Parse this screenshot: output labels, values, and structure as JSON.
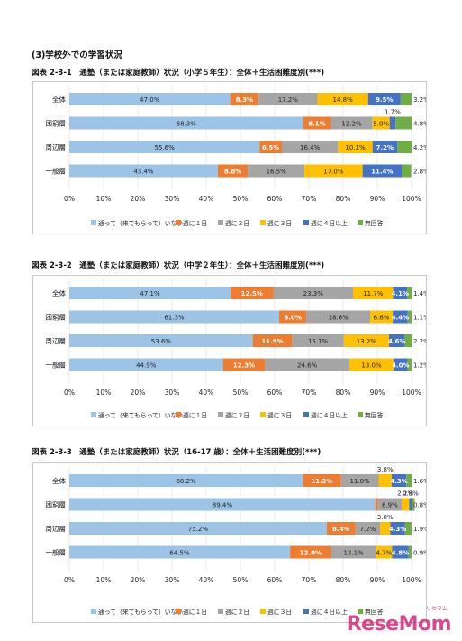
{
  "section_title": "(3)学校外での学習状況",
  "legend": [
    "通って（来てもらって）いない",
    "週に１日",
    "週に２日",
    "週に３日",
    "週に４日以上",
    "無回答"
  ],
  "colors": [
    "#9dc3e6",
    "#ed7d31",
    "#a5a5a5",
    "#ffc000",
    "#4472c4",
    "#70ad47"
  ],
  "x_ticks": [
    "0%",
    "10%",
    "20%",
    "30%",
    "40%",
    "50%",
    "60%",
    "70%",
    "80%",
    "90%",
    "100%"
  ],
  "watermark": "ReseMom",
  "watermark_sub": "リセマム",
  "chart_data": [
    {
      "type": "bar",
      "title": "図表 2-3-1　通塾（または家庭教師）状況（小学５年生）：全体＋生活困難度別(***)",
      "categories": [
        "全体",
        "困窮層",
        "周辺層",
        "一般層"
      ],
      "series": [
        {
          "name": "通って（来てもらって）いない",
          "values": [
            47.0,
            68.3,
            55.6,
            43.4
          ],
          "labels": [
            "47.0%",
            "68.3%",
            "55.6%",
            "43.4%"
          ]
        },
        {
          "name": "週に１日",
          "values": [
            8.3,
            8.1,
            6.5,
            8.8
          ],
          "labels": [
            "8.3%",
            "8.1%",
            "6.5%",
            "8.8%"
          ]
        },
        {
          "name": "週に２日",
          "values": [
            17.2,
            12.2,
            16.4,
            16.5
          ],
          "labels": [
            "17.2%",
            "12.2%",
            "16.4%",
            "16.5%"
          ]
        },
        {
          "name": "週に３日",
          "values": [
            14.8,
            5.0,
            10.1,
            17.0
          ],
          "labels": [
            "14.8%",
            "5.0%",
            "10.1%",
            "17.0%"
          ]
        },
        {
          "name": "週に４日以上",
          "values": [
            9.5,
            1.7,
            7.2,
            11.4
          ],
          "labels": [
            "9.5%",
            "1.7%",
            "7.2%",
            "11.4%"
          ]
        },
        {
          "name": "無回答",
          "values": [
            3.2,
            4.8,
            4.2,
            2.8
          ],
          "labels": [
            "3.2%",
            "4.8%",
            "4.2%",
            "2.8%"
          ]
        }
      ],
      "xlim": [
        0,
        100
      ]
    },
    {
      "type": "bar",
      "title": "図表 2-3-2　通塾（または家庭教師）状況（中学２年生）：全体＋生活困難度別(***)",
      "categories": [
        "全体",
        "困窮層",
        "周辺層",
        "一般層"
      ],
      "series": [
        {
          "name": "通って（来てもらって）いない",
          "values": [
            47.1,
            61.3,
            53.6,
            44.9
          ],
          "labels": [
            "47.1%",
            "61.3%",
            "53.6%",
            "44.9%"
          ]
        },
        {
          "name": "週に１日",
          "values": [
            12.5,
            8.0,
            11.5,
            12.3
          ],
          "labels": [
            "12.5%",
            "8.0%",
            "11.5%",
            "12.3%"
          ]
        },
        {
          "name": "週に２日",
          "values": [
            23.3,
            18.6,
            15.1,
            24.6
          ],
          "labels": [
            "23.3%",
            "18.6%",
            "15.1%",
            "24.6%"
          ]
        },
        {
          "name": "週に３日",
          "values": [
            11.7,
            6.6,
            13.2,
            13.0
          ],
          "labels": [
            "11.7%",
            "6.6%",
            "13.2%",
            "13.0%"
          ]
        },
        {
          "name": "週に４日以上",
          "values": [
            4.1,
            4.4,
            4.6,
            4.0
          ],
          "labels": [
            "4.1%",
            "4.4%",
            "4.6%",
            "4.0%"
          ]
        },
        {
          "name": "無回答",
          "values": [
            1.4,
            1.1,
            2.2,
            1.2
          ],
          "labels": [
            "1.4%",
            "1.1%",
            "2.2%",
            "1.2%"
          ]
        }
      ],
      "xlim": [
        0,
        100
      ]
    },
    {
      "type": "bar",
      "title": "図表 2-3-3　通塾（または家庭教師）状況（16-17 歳）：全体＋生活困難度別(***)",
      "categories": [
        "全体",
        "困窮層",
        "周辺層",
        "一般層"
      ],
      "series": [
        {
          "name": "通って（来てもらって）いない",
          "values": [
            68.2,
            89.4,
            75.2,
            64.5
          ],
          "labels": [
            "68.2%",
            "89.4%",
            "75.2%",
            "64.5%"
          ]
        },
        {
          "name": "週に１日",
          "values": [
            11.2,
            0.8,
            8.4,
            12.0
          ],
          "labels": [
            "11.2%",
            "",
            "8.4%",
            "12.0%"
          ]
        },
        {
          "name": "週に２日",
          "values": [
            11.0,
            6.9,
            7.2,
            13.1
          ],
          "labels": [
            "11.0%",
            "6.9%",
            "7.2%",
            "13.1%"
          ]
        },
        {
          "name": "週に３日",
          "values": [
            3.8,
            2.2,
            3.0,
            4.7
          ],
          "labels": [
            "3.8%",
            "2.2%",
            "3.0%",
            "4.7%"
          ]
        },
        {
          "name": "週に４日以上",
          "values": [
            4.3,
            0.8,
            4.3,
            4.8
          ],
          "labels": [
            "4.3%",
            "0.8%",
            "4.3%",
            "4.8%"
          ]
        },
        {
          "name": "無回答",
          "values": [
            1.6,
            0.8,
            1.9,
            0.9
          ],
          "labels": [
            "1.6%",
            "0.8%",
            "1.9%",
            "0.9%"
          ]
        }
      ],
      "xlim": [
        0,
        100
      ]
    }
  ]
}
